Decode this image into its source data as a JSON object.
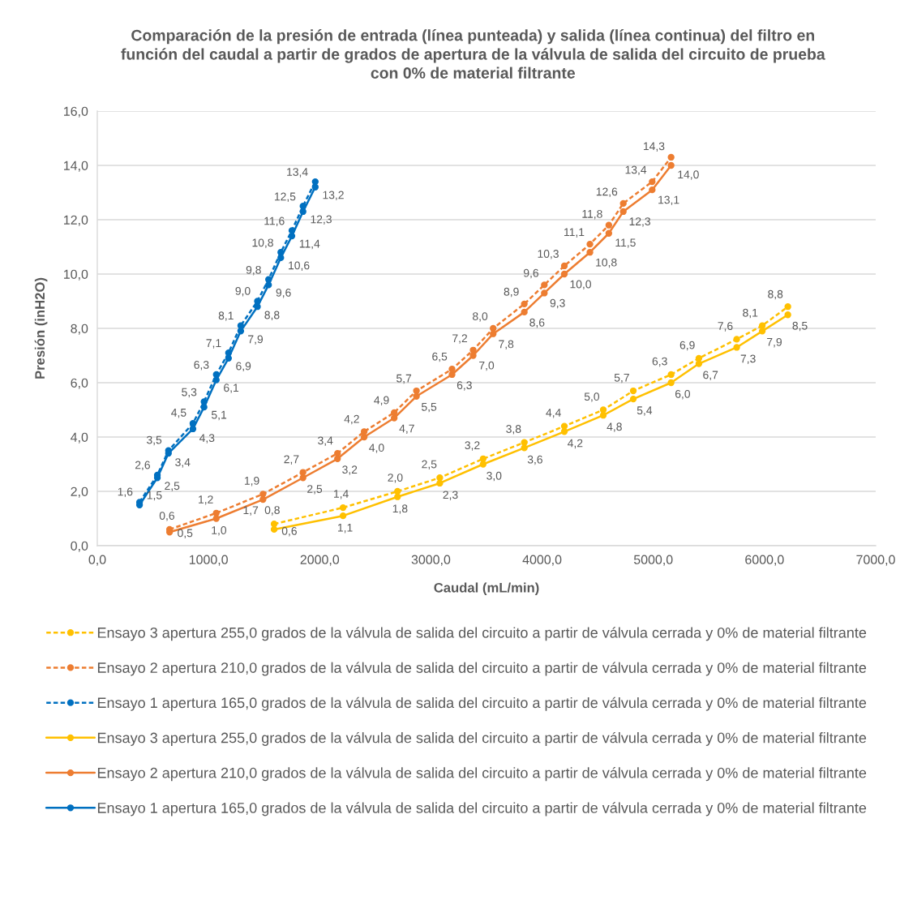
{
  "chart_data": {
    "type": "line",
    "title": "Comparación de la presión de entrada (línea punteada) y salida (línea continua) del filtro en función del caudal a partir de grados de apertura de la válvula de salida del circuito de prueba con 0% de material filtrante",
    "xlabel": "Caudal (mL/min)",
    "ylabel": "Presión (inH2O)",
    "xlim": [
      0,
      7000
    ],
    "ylim": [
      0,
      16
    ],
    "xticks": [
      {
        "value": 0,
        "label": "0,0"
      },
      {
        "value": 1000,
        "label": "1000,0"
      },
      {
        "value": 2000,
        "label": "2000,0"
      },
      {
        "value": 3000,
        "label": "3000,0"
      },
      {
        "value": 4000,
        "label": "4000,0"
      },
      {
        "value": 5000,
        "label": "5000,0"
      },
      {
        "value": 6000,
        "label": "6000,0"
      },
      {
        "value": 7000,
        "label": "7000,0"
      }
    ],
    "yticks": [
      {
        "value": 0,
        "label": "0,0"
      },
      {
        "value": 2,
        "label": "2,0"
      },
      {
        "value": 4,
        "label": "4,0"
      },
      {
        "value": 6,
        "label": "6,0"
      },
      {
        "value": 8,
        "label": "8,0"
      },
      {
        "value": 10,
        "label": "10,0"
      },
      {
        "value": 12,
        "label": "12,0"
      },
      {
        "value": 14,
        "label": "14,0"
      },
      {
        "value": 16,
        "label": "16,0"
      }
    ],
    "grid": "y",
    "legend": "bottom",
    "marker": "circle",
    "series": [
      {
        "name": "Ensayo 3 apertura 255,0 grados de la válvula de salida del circuito a partir de válvula cerrada y 0% de material filtrante",
        "color": "#ffc000",
        "line_style": "dashed",
        "x": [
          1590,
          2210,
          2700,
          3080,
          3470,
          3840,
          4200,
          4550,
          4820,
          5160,
          5410,
          5750,
          5980,
          6210
        ],
        "values": [
          0.8,
          1.4,
          2.0,
          2.5,
          3.2,
          3.8,
          4.4,
          5.0,
          5.7,
          6.3,
          6.9,
          7.6,
          8.1,
          8.8
        ],
        "value_labels": [
          "0,8",
          "1,4",
          "2,0",
          "2,5",
          "3,2",
          "3,8",
          "4,4",
          "5,0",
          "5,7",
          "6,3",
          "6,9",
          "7,6",
          "8,1",
          "8,8"
        ]
      },
      {
        "name": "Ensayo 2 apertura 210,0 grados de la válvula de salida del circuito a partir de válvula cerrada y 0% de material filtrante",
        "color": "#ed7d31",
        "line_style": "dashed",
        "x": [
          650,
          1070,
          1490,
          1850,
          2160,
          2400,
          2670,
          2870,
          3190,
          3380,
          3560,
          3840,
          4020,
          4200,
          4430,
          4600,
          4730,
          4990,
          5160
        ],
        "values": [
          0.6,
          1.2,
          1.9,
          2.7,
          3.4,
          4.2,
          4.9,
          5.7,
          6.5,
          7.2,
          8.0,
          8.9,
          9.6,
          10.3,
          11.1,
          11.8,
          12.6,
          13.4,
          14.3
        ],
        "value_labels": [
          "0,6",
          "1,2",
          "1,9",
          "2,7",
          "3,4",
          "4,2",
          "4,9",
          "5,7",
          "6,5",
          "7,2",
          "8,0",
          "8,9",
          "9,6",
          "10,3",
          "11,1",
          "11,8",
          "12,6",
          "13,4",
          "14,3"
        ]
      },
      {
        "name": "Ensayo 1 apertura 165,0 grados de la válvula de salida del circuito a partir de válvula cerrada y 0% de material filtrante",
        "color": "#0070c0",
        "line_style": "dashed",
        "x": [
          380,
          540,
          640,
          860,
          960,
          1070,
          1180,
          1290,
          1440,
          1540,
          1650,
          1750,
          1850,
          1960
        ],
        "values": [
          1.6,
          2.6,
          3.5,
          4.5,
          5.3,
          6.3,
          7.1,
          8.1,
          9.0,
          9.8,
          10.8,
          11.6,
          12.5,
          13.4
        ],
        "value_labels": [
          "1,6",
          "2,6",
          "3,5",
          "4,5",
          "5,3",
          "6,3",
          "7,1",
          "8,1",
          "9,0",
          "9,8",
          "10,8",
          "11,6",
          "12,5",
          "13,4"
        ]
      },
      {
        "name": "Ensayo 3 apertura 255,0 grados de la válvula de salida del circuito a partir de válvula cerrada y 0% de material filtrante",
        "color": "#ffc000",
        "line_style": "solid",
        "x": [
          1590,
          2210,
          2700,
          3080,
          3470,
          3840,
          4200,
          4550,
          4820,
          5160,
          5410,
          5750,
          5980,
          6210
        ],
        "values": [
          0.6,
          1.1,
          1.8,
          2.3,
          3.0,
          3.6,
          4.2,
          4.8,
          5.4,
          6.0,
          6.7,
          7.3,
          7.9,
          8.5
        ],
        "value_labels": [
          "0,6",
          "1,1",
          "1,8",
          "2,3",
          "3,0",
          "3,6",
          "4,2",
          "4,8",
          "5,4",
          "6,0",
          "6,7",
          "7,3",
          "7,9",
          "8,5"
        ]
      },
      {
        "name": "Ensayo 2 apertura 210,0 grados de la válvula de salida del circuito a partir de válvula cerrada y 0% de material filtrante",
        "color": "#ed7d31",
        "line_style": "solid",
        "x": [
          650,
          1070,
          1490,
          1850,
          2160,
          2400,
          2670,
          2870,
          3190,
          3380,
          3560,
          3840,
          4020,
          4200,
          4430,
          4600,
          4730,
          4990,
          5160
        ],
        "values": [
          0.5,
          1.0,
          1.7,
          2.5,
          3.2,
          4.0,
          4.7,
          5.5,
          6.3,
          7.0,
          7.8,
          8.6,
          9.3,
          10.0,
          10.8,
          11.5,
          12.3,
          13.1,
          14.0
        ],
        "value_labels": [
          "0,5",
          "1,0",
          "1,7",
          "2,5",
          "3,2",
          "4,0",
          "4,7",
          "5,5",
          "6,3",
          "7,0",
          "7,8",
          "8,6",
          "9,3",
          "10,0",
          "10,8",
          "11,5",
          "12,3",
          "13,1",
          "14,0"
        ]
      },
      {
        "name": "Ensayo 1 apertura 165,0 grados de la válvula de salida del circuito a partir de válvula cerrada y 0% de material filtrante",
        "color": "#0070c0",
        "line_style": "solid",
        "x": [
          380,
          540,
          640,
          860,
          960,
          1070,
          1180,
          1290,
          1440,
          1540,
          1650,
          1750,
          1850,
          1960
        ],
        "values": [
          1.5,
          2.5,
          3.4,
          4.3,
          5.1,
          6.1,
          6.9,
          7.9,
          8.8,
          9.6,
          10.6,
          11.4,
          12.3,
          13.2
        ],
        "value_labels": [
          "1,5",
          "2,5",
          "3,4",
          "4,3",
          "5,1",
          "6,1",
          "6,9",
          "7,9",
          "8,8",
          "9,6",
          "10,6",
          "11,4",
          "12,3",
          "13,2"
        ]
      }
    ]
  }
}
